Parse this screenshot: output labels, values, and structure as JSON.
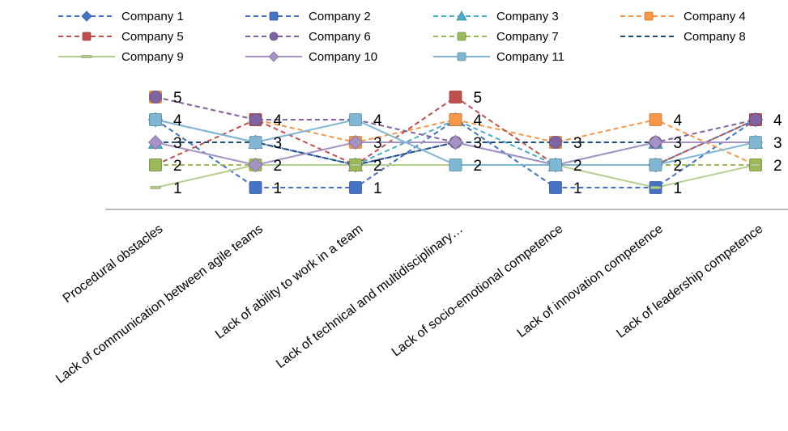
{
  "chart_data": {
    "type": "line",
    "categories": [
      "Procedural obstacles",
      "Lack of communication between agile teams",
      "Lack of ability to work in a team",
      "Lack of technical and multidisciplinary…",
      "Lack of socio-emotional competence",
      "Lack of innovation competence",
      "Lack of leadership competence"
    ],
    "ylim": [
      0.5,
      5.5
    ],
    "grid": false,
    "legend_position": "top",
    "series": [
      {
        "name": "Company 1",
        "color": "#4472C4",
        "dash": "dashed",
        "marker": "diamond",
        "values": [
          4,
          3,
          2,
          3,
          2,
          2,
          4
        ]
      },
      {
        "name": "Company 2",
        "color": "#4472C4",
        "dash": "dashed",
        "marker": "square",
        "values": [
          4,
          1,
          1,
          4,
          1,
          1,
          4
        ]
      },
      {
        "name": "Company 3",
        "color": "#4BACC6",
        "dash": "dashed",
        "marker": "triangle",
        "values": [
          3,
          3,
          2,
          4,
          2,
          3,
          3
        ]
      },
      {
        "name": "Company 4",
        "color": "#F79646",
        "dash": "dashed",
        "marker": "square",
        "values": [
          5,
          4,
          3,
          4,
          3,
          4,
          2
        ]
      },
      {
        "name": "Company 5",
        "color": "#C0504D",
        "dash": "dashed",
        "marker": "square",
        "values": [
          2,
          4,
          2,
          5,
          2,
          2,
          4
        ]
      },
      {
        "name": "Company 6",
        "color": "#8064A2",
        "dash": "dashed",
        "marker": "circle",
        "values": [
          5,
          4,
          4,
          3,
          3,
          3,
          4
        ]
      },
      {
        "name": "Company 7",
        "color": "#9BBB59",
        "dash": "dashed",
        "marker": "square",
        "values": [
          2,
          2,
          2,
          2,
          2,
          2,
          2
        ]
      },
      {
        "name": "Company 8",
        "color": "#1F4E79",
        "dash": "dashed",
        "marker": "none",
        "values": [
          3,
          3,
          2,
          3,
          3,
          3,
          3
        ]
      },
      {
        "name": "Company 9",
        "color": "#B5CF8E",
        "dash": "solid",
        "marker": "dash",
        "values": [
          1,
          2,
          2,
          2,
          2,
          1,
          2
        ]
      },
      {
        "name": "Company 10",
        "color": "#A692C5",
        "dash": "solid",
        "marker": "diamond",
        "values": [
          3,
          2,
          3,
          3,
          2,
          3,
          3
        ]
      },
      {
        "name": "Company 11",
        "color": "#7FB6D3",
        "dash": "solid",
        "marker": "square",
        "values": [
          4,
          3,
          4,
          2,
          2,
          2,
          3
        ]
      }
    ],
    "value_labels": [
      [
        "5",
        "4",
        "3",
        "2",
        "1"
      ],
      [
        "4",
        "3",
        "2",
        "1"
      ],
      [
        "4",
        "3",
        "2",
        "1"
      ],
      [
        "5",
        "4",
        "3",
        "2"
      ],
      [
        "3",
        "2",
        "1"
      ],
      [
        "4",
        "3",
        "2",
        "1"
      ],
      [
        "4",
        "3",
        "2"
      ]
    ]
  }
}
